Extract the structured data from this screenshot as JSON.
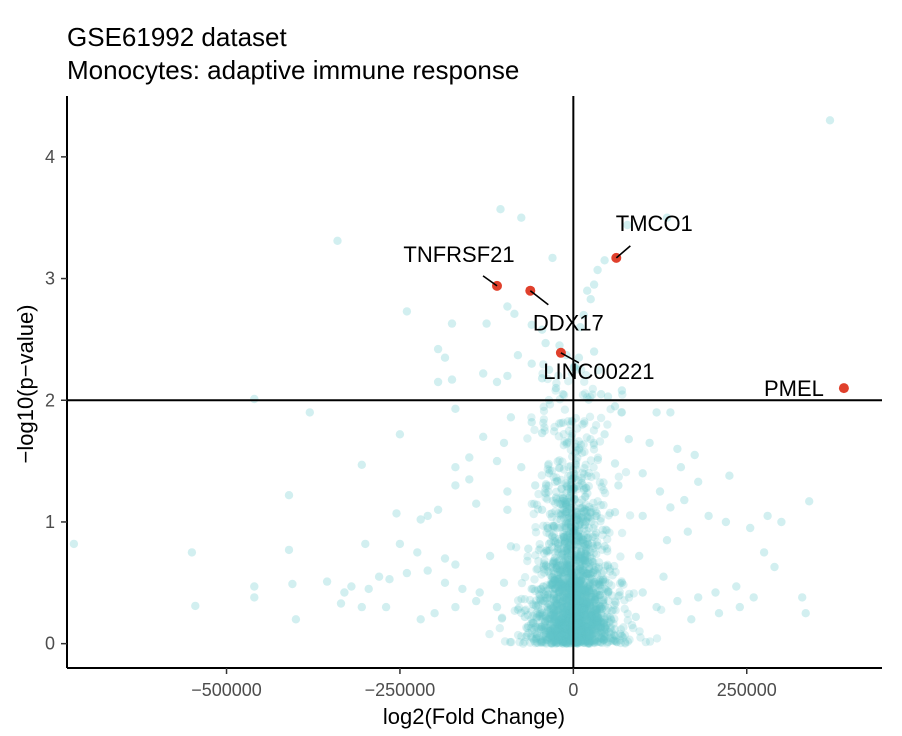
{
  "chart_data": {
    "type": "scatter",
    "title": "GSE61992 dataset",
    "subtitle": "Monocytes: adaptive immune response",
    "xlabel": "log2(Fold Change)",
    "ylabel": "−log10(p−value)",
    "xlim": [
      -730000,
      445000
    ],
    "ylim": [
      -0.2,
      4.5
    ],
    "x_ticks": [
      {
        "value": -500000,
        "label": "−500000"
      },
      {
        "value": -250000,
        "label": "−250000"
      },
      {
        "value": 0,
        "label": "0"
      },
      {
        "value": 250000,
        "label": "250000"
      }
    ],
    "y_ticks": [
      {
        "value": 0,
        "label": "0"
      },
      {
        "value": 1,
        "label": "1"
      },
      {
        "value": 2,
        "label": "2"
      },
      {
        "value": 3,
        "label": "3"
      },
      {
        "value": 4,
        "label": "4"
      }
    ],
    "reference_lines": {
      "x": 0,
      "y": 2
    },
    "colors": {
      "background_points": "#5ec4c8",
      "highlighted_points": "#e0402c",
      "axis": "#000000"
    },
    "grid": false,
    "highlighted_points": [
      {
        "label": "TMCO1",
        "x": 62000,
        "y": 3.17
      },
      {
        "label": "TNFRSF21",
        "x": -110000,
        "y": 2.94
      },
      {
        "label": "DDX17",
        "x": -62000,
        "y": 2.9
      },
      {
        "label": "LINC00221",
        "x": -18000,
        "y": 2.39
      },
      {
        "label": "PMEL",
        "x": 390000,
        "y": 2.1
      }
    ],
    "background_points": [
      [
        370000,
        4.3
      ],
      [
        -340000,
        3.31
      ],
      [
        -105000,
        3.57
      ],
      [
        -75000,
        3.5
      ],
      [
        -30000,
        3.17
      ],
      [
        78000,
        3.44
      ],
      [
        135000,
        3.5
      ],
      [
        45000,
        3.15
      ],
      [
        35000,
        3.07
      ],
      [
        30000,
        2.95
      ],
      [
        -240000,
        2.73
      ],
      [
        -175000,
        2.63
      ],
      [
        -125000,
        2.63
      ],
      [
        -95000,
        2.77
      ],
      [
        -85000,
        2.71
      ],
      [
        -60000,
        2.62
      ],
      [
        -45000,
        2.58
      ],
      [
        -40000,
        2.47
      ],
      [
        20000,
        2.9
      ],
      [
        25000,
        2.83
      ],
      [
        15000,
        2.7
      ],
      [
        10000,
        2.6
      ],
      [
        -195000,
        2.42
      ],
      [
        -185000,
        2.35
      ],
      [
        -80000,
        2.37
      ],
      [
        -60000,
        2.3
      ],
      [
        -20000,
        2.45
      ],
      [
        -10000,
        2.37
      ],
      [
        8000,
        2.35
      ],
      [
        30000,
        2.4
      ],
      [
        -195000,
        2.15
      ],
      [
        -175000,
        2.17
      ],
      [
        -130000,
        2.22
      ],
      [
        -110000,
        2.15
      ],
      [
        -95000,
        2.2
      ],
      [
        -45000,
        2.18
      ],
      [
        -35000,
        2.25
      ],
      [
        -25000,
        2.1
      ],
      [
        -15000,
        2.05
      ],
      [
        40000,
        2.05
      ],
      [
        50000,
        2.03
      ],
      [
        70000,
        2.08
      ],
      [
        -460000,
        2.01
      ],
      [
        -380000,
        1.9
      ],
      [
        -170000,
        1.93
      ],
      [
        -90000,
        1.86
      ],
      [
        -60000,
        1.82
      ],
      [
        60000,
        1.95
      ],
      [
        120000,
        1.9
      ],
      [
        140000,
        1.9
      ],
      [
        -250000,
        1.72
      ],
      [
        -130000,
        1.7
      ],
      [
        -100000,
        1.65
      ],
      [
        -45000,
        1.73
      ],
      [
        45000,
        1.72
      ],
      [
        80000,
        1.68
      ],
      [
        110000,
        1.65
      ],
      [
        150000,
        1.6
      ],
      [
        175000,
        1.55
      ],
      [
        -305000,
        1.47
      ],
      [
        -170000,
        1.45
      ],
      [
        -150000,
        1.53
      ],
      [
        -110000,
        1.5
      ],
      [
        -75000,
        1.45
      ],
      [
        -35000,
        1.4
      ],
      [
        60000,
        1.48
      ],
      [
        100000,
        1.4
      ],
      [
        155000,
        1.45
      ],
      [
        225000,
        1.38
      ],
      [
        -170000,
        1.3
      ],
      [
        -150000,
        1.35
      ],
      [
        -95000,
        1.25
      ],
      [
        -55000,
        1.3
      ],
      [
        -25000,
        1.2
      ],
      [
        65000,
        1.3
      ],
      [
        125000,
        1.25
      ],
      [
        160000,
        1.18
      ],
      [
        180000,
        1.33
      ],
      [
        -410000,
        1.22
      ],
      [
        -255000,
        1.07
      ],
      [
        -220000,
        1.02
      ],
      [
        -210000,
        1.05
      ],
      [
        -195000,
        1.1
      ],
      [
        -140000,
        1.15
      ],
      [
        -95000,
        1.1
      ],
      [
        -45000,
        1.1
      ],
      [
        60000,
        1.08
      ],
      [
        100000,
        1.05
      ],
      [
        140000,
        1.12
      ],
      [
        195000,
        1.05
      ],
      [
        220000,
        1.0
      ],
      [
        340000,
        1.17
      ],
      [
        -720000,
        0.82
      ],
      [
        -550000,
        0.75
      ],
      [
        -410000,
        0.77
      ],
      [
        -300000,
        0.82
      ],
      [
        -250000,
        0.82
      ],
      [
        -225000,
        0.75
      ],
      [
        -185000,
        0.7
      ],
      [
        -170000,
        0.65
      ],
      [
        -120000,
        0.72
      ],
      [
        -90000,
        0.8
      ],
      [
        -65000,
        0.78
      ],
      [
        -35000,
        0.82
      ],
      [
        45000,
        0.8
      ],
      [
        95000,
        0.72
      ],
      [
        135000,
        0.85
      ],
      [
        165000,
        0.92
      ],
      [
        255000,
        0.95
      ],
      [
        280000,
        1.05
      ],
      [
        300000,
        1.0
      ],
      [
        275000,
        0.75
      ],
      [
        290000,
        0.63
      ],
      [
        330000,
        0.38
      ],
      [
        335000,
        0.25
      ],
      [
        -460000,
        0.47
      ],
      [
        -405000,
        0.49
      ],
      [
        -355000,
        0.51
      ],
      [
        -330000,
        0.42
      ],
      [
        -320000,
        0.47
      ],
      [
        -295000,
        0.45
      ],
      [
        -280000,
        0.55
      ],
      [
        -265000,
        0.53
      ],
      [
        -240000,
        0.58
      ],
      [
        -210000,
        0.6
      ],
      [
        -185000,
        0.5
      ],
      [
        -160000,
        0.45
      ],
      [
        -135000,
        0.42
      ],
      [
        -100000,
        0.5
      ],
      [
        -60000,
        0.45
      ],
      [
        -30000,
        0.48
      ],
      [
        -545000,
        0.31
      ],
      [
        -460000,
        0.38
      ],
      [
        -400000,
        0.2
      ],
      [
        -335000,
        0.33
      ],
      [
        -305000,
        0.3
      ],
      [
        -270000,
        0.3
      ],
      [
        -220000,
        0.2
      ],
      [
        -200000,
        0.25
      ],
      [
        -170000,
        0.3
      ],
      [
        -140000,
        0.35
      ],
      [
        -110000,
        0.3
      ],
      [
        -80000,
        0.28
      ],
      [
        45000,
        0.45
      ],
      [
        70000,
        0.5
      ],
      [
        100000,
        0.42
      ],
      [
        130000,
        0.55
      ],
      [
        150000,
        0.35
      ],
      [
        180000,
        0.38
      ],
      [
        205000,
        0.42
      ],
      [
        235000,
        0.47
      ],
      [
        260000,
        0.38
      ],
      [
        240000,
        0.3
      ],
      [
        210000,
        0.25
      ],
      [
        170000,
        0.2
      ],
      [
        120000,
        0.3
      ],
      [
        90000,
        0.22
      ],
      [
        -70000,
        0.22
      ]
    ]
  }
}
